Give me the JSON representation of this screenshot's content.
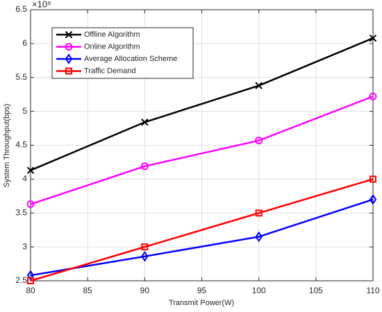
{
  "chart_data": {
    "type": "line",
    "x_label": "Transmit Power(W)",
    "y_label": "System Throughput(bps)",
    "y_multiplier": "×10⁹",
    "x": [
      80,
      90,
      100,
      110
    ],
    "xlim": [
      80,
      110
    ],
    "xticks": [
      80,
      85,
      90,
      95,
      100,
      105,
      110
    ],
    "ylim": [
      2.5,
      6.5
    ],
    "yticks": [
      2.5,
      3,
      3.5,
      4,
      4.5,
      5,
      5.5,
      6,
      6.5
    ],
    "grid": true,
    "legend": "top-left",
    "series": [
      {
        "name": "Offline Algorithm",
        "color": "#000000",
        "marker": "x",
        "values": [
          4.13,
          4.84,
          5.38,
          6.08
        ]
      },
      {
        "name": "Online Algorithm",
        "color": "#ff00ff",
        "marker": "circle",
        "values": [
          3.63,
          4.19,
          4.57,
          5.22
        ]
      },
      {
        "name": "Average Allocation Scheme",
        "color": "#0000ff",
        "marker": "diamond",
        "values": [
          2.58,
          2.86,
          3.15,
          3.7
        ]
      },
      {
        "name": "Traffic Demand",
        "color": "#ff0000",
        "marker": "square",
        "values": [
          2.5,
          3.0,
          3.5,
          4.0
        ]
      }
    ]
  }
}
